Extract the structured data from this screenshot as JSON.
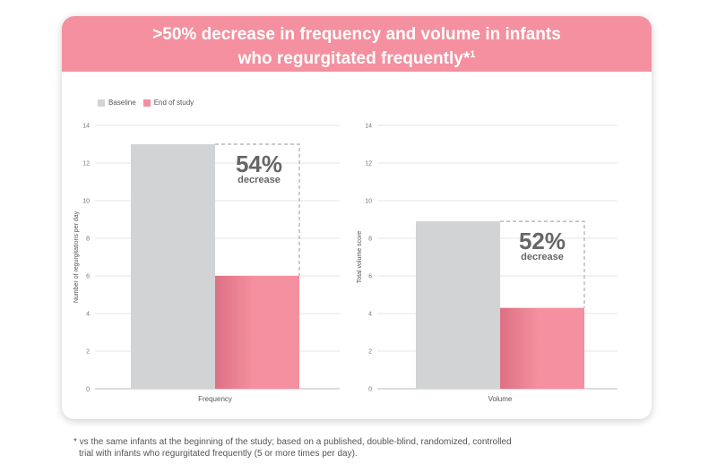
{
  "header": {
    "title_line1": ">50% decrease in frequency and volume in infants",
    "title_line2": "who regurgitated frequently*",
    "title_sup": "1"
  },
  "legend": {
    "baseline": "Baseline",
    "end_of_study": "End of study"
  },
  "colors": {
    "banner": "#f4909f",
    "baseline": "#d1d3d4",
    "end_of_study": "#f4909f",
    "end_of_study_dark": "#dd7083"
  },
  "chart_data": [
    {
      "type": "bar",
      "categories": [
        "Frequency"
      ],
      "series": [
        {
          "name": "Baseline",
          "values": [
            13
          ]
        },
        {
          "name": "End of study",
          "values": [
            6
          ]
        }
      ],
      "xlabel": "Frequency",
      "ylabel": "Number of regurgitations per day",
      "ylim": [
        0,
        14
      ],
      "yticks": [
        "0",
        "2",
        "4",
        "6",
        "8",
        "10",
        "12",
        "14"
      ],
      "annotation": {
        "value": "54%",
        "label": "decrease"
      }
    },
    {
      "type": "bar",
      "categories": [
        "Volume"
      ],
      "series": [
        {
          "name": "Baseline",
          "values": [
            8.9
          ]
        },
        {
          "name": "End of study",
          "values": [
            4.3
          ]
        }
      ],
      "xlabel": "Volume",
      "ylabel": "Total volume score",
      "ylim": [
        0,
        14
      ],
      "yticks": [
        "0",
        "2",
        "4",
        "6",
        "8",
        "10",
        "12",
        "14"
      ],
      "annotation": {
        "value": "52%",
        "label": "decrease"
      }
    }
  ],
  "footnote": {
    "line1": "* vs the same infants at the beginning of the study; based on a published, double-blind, randomized, controlled",
    "line2": "trial with infants who regurgitated frequently (5 or more times per day)."
  }
}
